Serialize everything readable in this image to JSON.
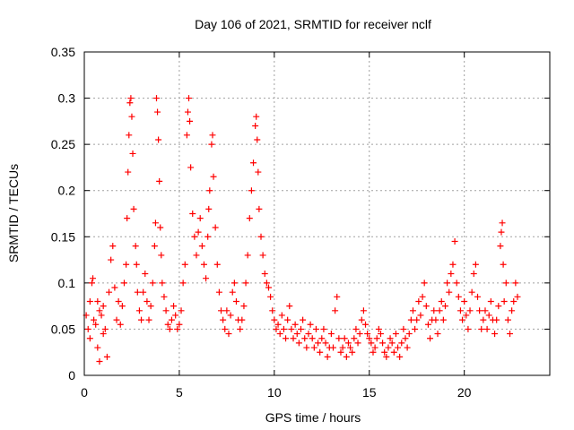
{
  "chart_data": {
    "type": "scatter",
    "title": "Day 106 of 2021, SRMTID for receiver nclf",
    "xlabel": "GPS time / hours",
    "ylabel": "SRMTID / TECUs",
    "xlim": [
      0,
      24.5
    ],
    "ylim": [
      0,
      0.35
    ],
    "xticks": [
      0,
      5,
      10,
      15,
      20
    ],
    "xtick_labels": [
      "0",
      "5",
      "10",
      "15",
      "20"
    ],
    "yticks": [
      0,
      0.05,
      0.1,
      0.15,
      0.2,
      0.25,
      0.3,
      0.35
    ],
    "ytick_labels": [
      "0",
      "0.05",
      "0.1",
      "0.15",
      "0.2",
      "0.25",
      "0.3",
      "0.35"
    ],
    "grid": true,
    "marker": "+",
    "marker_color": "#ff0000",
    "series": [
      {
        "name": "nclf",
        "points": [
          [
            0.1,
            0.065
          ],
          [
            0.2,
            0.05
          ],
          [
            0.3,
            0.04
          ],
          [
            0.3,
            0.08
          ],
          [
            0.4,
            0.1
          ],
          [
            0.45,
            0.105
          ],
          [
            0.5,
            0.06
          ],
          [
            0.6,
            0.055
          ],
          [
            0.7,
            0.03
          ],
          [
            0.7,
            0.08
          ],
          [
            0.8,
            0.07
          ],
          [
            0.8,
            0.015
          ],
          [
            0.9,
            0.065
          ],
          [
            1.0,
            0.075
          ],
          [
            1.0,
            0.045
          ],
          [
            1.1,
            0.05
          ],
          [
            1.2,
            0.02
          ],
          [
            1.3,
            0.09
          ],
          [
            1.4,
            0.125
          ],
          [
            1.5,
            0.14
          ],
          [
            1.6,
            0.095
          ],
          [
            1.7,
            0.06
          ],
          [
            1.8,
            0.08
          ],
          [
            1.9,
            0.055
          ],
          [
            2.0,
            0.075
          ],
          [
            2.1,
            0.1
          ],
          [
            2.2,
            0.12
          ],
          [
            2.25,
            0.17
          ],
          [
            2.3,
            0.22
          ],
          [
            2.35,
            0.26
          ],
          [
            2.4,
            0.295
          ],
          [
            2.45,
            0.3
          ],
          [
            2.5,
            0.28
          ],
          [
            2.55,
            0.24
          ],
          [
            2.6,
            0.18
          ],
          [
            2.7,
            0.14
          ],
          [
            2.75,
            0.12
          ],
          [
            2.8,
            0.09
          ],
          [
            2.9,
            0.07
          ],
          [
            3.0,
            0.06
          ],
          [
            3.1,
            0.09
          ],
          [
            3.2,
            0.11
          ],
          [
            3.3,
            0.08
          ],
          [
            3.4,
            0.06
          ],
          [
            3.5,
            0.075
          ],
          [
            3.6,
            0.1
          ],
          [
            3.7,
            0.14
          ],
          [
            3.75,
            0.165
          ],
          [
            3.8,
            0.3
          ],
          [
            3.85,
            0.285
          ],
          [
            3.9,
            0.255
          ],
          [
            3.95,
            0.21
          ],
          [
            4.0,
            0.16
          ],
          [
            4.05,
            0.13
          ],
          [
            4.1,
            0.1
          ],
          [
            4.2,
            0.085
          ],
          [
            4.3,
            0.07
          ],
          [
            4.4,
            0.055
          ],
          [
            4.5,
            0.05
          ],
          [
            4.6,
            0.06
          ],
          [
            4.7,
            0.075
          ],
          [
            4.8,
            0.065
          ],
          [
            4.9,
            0.05
          ],
          [
            5.0,
            0.055
          ],
          [
            5.1,
            0.07
          ],
          [
            5.2,
            0.1
          ],
          [
            5.3,
            0.12
          ],
          [
            5.4,
            0.26
          ],
          [
            5.45,
            0.285
          ],
          [
            5.5,
            0.3
          ],
          [
            5.55,
            0.275
          ],
          [
            5.6,
            0.225
          ],
          [
            5.7,
            0.175
          ],
          [
            5.8,
            0.15
          ],
          [
            5.9,
            0.13
          ],
          [
            6.0,
            0.155
          ],
          [
            6.1,
            0.17
          ],
          [
            6.2,
            0.14
          ],
          [
            6.3,
            0.12
          ],
          [
            6.4,
            0.105
          ],
          [
            6.5,
            0.15
          ],
          [
            6.55,
            0.18
          ],
          [
            6.6,
            0.2
          ],
          [
            6.7,
            0.25
          ],
          [
            6.75,
            0.26
          ],
          [
            6.8,
            0.215
          ],
          [
            6.9,
            0.16
          ],
          [
            7.0,
            0.12
          ],
          [
            7.1,
            0.09
          ],
          [
            7.2,
            0.07
          ],
          [
            7.3,
            0.06
          ],
          [
            7.4,
            0.05
          ],
          [
            7.5,
            0.07
          ],
          [
            7.6,
            0.045
          ],
          [
            7.7,
            0.065
          ],
          [
            7.8,
            0.09
          ],
          [
            7.9,
            0.1
          ],
          [
            8.0,
            0.08
          ],
          [
            8.1,
            0.06
          ],
          [
            8.2,
            0.05
          ],
          [
            8.3,
            0.06
          ],
          [
            8.4,
            0.075
          ],
          [
            8.5,
            0.1
          ],
          [
            8.6,
            0.13
          ],
          [
            8.7,
            0.17
          ],
          [
            8.8,
            0.2
          ],
          [
            8.9,
            0.23
          ],
          [
            9.0,
            0.27
          ],
          [
            9.05,
            0.28
          ],
          [
            9.1,
            0.255
          ],
          [
            9.15,
            0.22
          ],
          [
            9.2,
            0.18
          ],
          [
            9.3,
            0.15
          ],
          [
            9.4,
            0.13
          ],
          [
            9.5,
            0.11
          ],
          [
            9.6,
            0.1
          ],
          [
            9.7,
            0.095
          ],
          [
            9.8,
            0.085
          ],
          [
            9.9,
            0.07
          ],
          [
            10.0,
            0.06
          ],
          [
            10.1,
            0.05
          ],
          [
            10.2,
            0.055
          ],
          [
            10.3,
            0.045
          ],
          [
            10.4,
            0.065
          ],
          [
            10.5,
            0.05
          ],
          [
            10.6,
            0.04
          ],
          [
            10.7,
            0.06
          ],
          [
            10.8,
            0.075
          ],
          [
            10.9,
            0.05
          ],
          [
            11.0,
            0.04
          ],
          [
            11.1,
            0.055
          ],
          [
            11.2,
            0.045
          ],
          [
            11.3,
            0.035
          ],
          [
            11.4,
            0.05
          ],
          [
            11.5,
            0.06
          ],
          [
            11.6,
            0.04
          ],
          [
            11.7,
            0.03
          ],
          [
            11.8,
            0.045
          ],
          [
            11.9,
            0.055
          ],
          [
            12.0,
            0.04
          ],
          [
            12.1,
            0.03
          ],
          [
            12.2,
            0.05
          ],
          [
            12.3,
            0.035
          ],
          [
            12.4,
            0.025
          ],
          [
            12.5,
            0.04
          ],
          [
            12.6,
            0.05
          ],
          [
            12.7,
            0.035
          ],
          [
            12.8,
            0.02
          ],
          [
            12.9,
            0.03
          ],
          [
            13.0,
            0.045
          ],
          [
            13.1,
            0.03
          ],
          [
            13.2,
            0.07
          ],
          [
            13.3,
            0.085
          ],
          [
            13.4,
            0.04
          ],
          [
            13.5,
            0.025
          ],
          [
            13.6,
            0.03
          ],
          [
            13.7,
            0.04
          ],
          [
            13.8,
            0.02
          ],
          [
            13.9,
            0.035
          ],
          [
            14.0,
            0.03
          ],
          [
            14.1,
            0.025
          ],
          [
            14.2,
            0.04
          ],
          [
            14.3,
            0.05
          ],
          [
            14.4,
            0.035
          ],
          [
            14.5,
            0.045
          ],
          [
            14.6,
            0.06
          ],
          [
            14.7,
            0.07
          ],
          [
            14.8,
            0.055
          ],
          [
            14.9,
            0.045
          ],
          [
            15.0,
            0.04
          ],
          [
            15.1,
            0.035
          ],
          [
            15.2,
            0.025
          ],
          [
            15.3,
            0.03
          ],
          [
            15.4,
            0.04
          ],
          [
            15.5,
            0.05
          ],
          [
            15.6,
            0.045
          ],
          [
            15.7,
            0.035
          ],
          [
            15.8,
            0.025
          ],
          [
            15.9,
            0.02
          ],
          [
            16.0,
            0.03
          ],
          [
            16.1,
            0.04
          ],
          [
            16.2,
            0.035
          ],
          [
            16.3,
            0.025
          ],
          [
            16.4,
            0.045
          ],
          [
            16.5,
            0.03
          ],
          [
            16.6,
            0.02
          ],
          [
            16.7,
            0.035
          ],
          [
            16.8,
            0.05
          ],
          [
            16.9,
            0.04
          ],
          [
            17.0,
            0.03
          ],
          [
            17.1,
            0.045
          ],
          [
            17.2,
            0.06
          ],
          [
            17.3,
            0.07
          ],
          [
            17.4,
            0.05
          ],
          [
            17.5,
            0.06
          ],
          [
            17.6,
            0.08
          ],
          [
            17.7,
            0.065
          ],
          [
            17.8,
            0.085
          ],
          [
            17.9,
            0.1
          ],
          [
            18.0,
            0.075
          ],
          [
            18.1,
            0.055
          ],
          [
            18.2,
            0.04
          ],
          [
            18.3,
            0.06
          ],
          [
            18.4,
            0.07
          ],
          [
            18.5,
            0.06
          ],
          [
            18.6,
            0.045
          ],
          [
            18.7,
            0.07
          ],
          [
            18.8,
            0.08
          ],
          [
            18.9,
            0.06
          ],
          [
            19.0,
            0.075
          ],
          [
            19.1,
            0.1
          ],
          [
            19.2,
            0.09
          ],
          [
            19.3,
            0.11
          ],
          [
            19.4,
            0.12
          ],
          [
            19.5,
            0.145
          ],
          [
            19.6,
            0.1
          ],
          [
            19.7,
            0.085
          ],
          [
            19.8,
            0.07
          ],
          [
            19.9,
            0.06
          ],
          [
            20.0,
            0.08
          ],
          [
            20.1,
            0.065
          ],
          [
            20.2,
            0.05
          ],
          [
            20.3,
            0.07
          ],
          [
            20.4,
            0.09
          ],
          [
            20.5,
            0.11
          ],
          [
            20.6,
            0.12
          ],
          [
            20.7,
            0.085
          ],
          [
            20.8,
            0.07
          ],
          [
            20.9,
            0.05
          ],
          [
            21.0,
            0.06
          ],
          [
            21.1,
            0.07
          ],
          [
            21.2,
            0.05
          ],
          [
            21.3,
            0.065
          ],
          [
            21.4,
            0.08
          ],
          [
            21.5,
            0.06
          ],
          [
            21.6,
            0.045
          ],
          [
            21.7,
            0.06
          ],
          [
            21.8,
            0.075
          ],
          [
            21.9,
            0.14
          ],
          [
            21.95,
            0.155
          ],
          [
            22.0,
            0.165
          ],
          [
            22.05,
            0.12
          ],
          [
            22.1,
            0.08
          ],
          [
            22.2,
            0.1
          ],
          [
            22.3,
            0.06
          ],
          [
            22.4,
            0.045
          ],
          [
            22.5,
            0.07
          ],
          [
            22.6,
            0.08
          ],
          [
            22.7,
            0.1
          ],
          [
            22.8,
            0.085
          ]
        ]
      }
    ]
  }
}
